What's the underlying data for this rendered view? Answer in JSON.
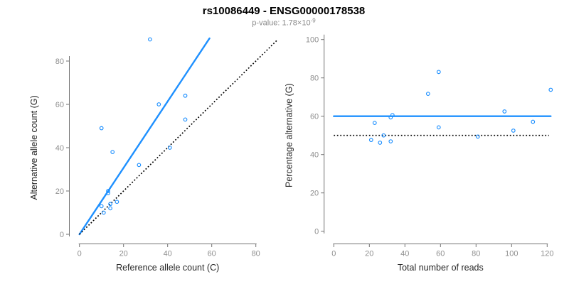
{
  "header": {
    "title": "rs10086449 - ENSG00000178538",
    "pvalue_text": "p-value: 1.78×10",
    "pvalue_exponent": "-9"
  },
  "colors": {
    "accent_blue": "#1E90FF",
    "reference_black": "#000000"
  },
  "chart_data": [
    {
      "type": "scatter",
      "title": "rs10086449 - ENSG00000178538",
      "subtitle": "p-value: 1.78×10^-9",
      "xlabel": "Reference allele count (C)",
      "ylabel": "Alternative allele count (G)",
      "xticks": [
        0,
        20,
        40,
        60,
        80
      ],
      "yticks": [
        0,
        20,
        40,
        60,
        80
      ],
      "xlim": [
        0,
        92
      ],
      "ylim": [
        0,
        92
      ],
      "grid": false,
      "legend": "none",
      "point_style": "open-circle",
      "points": [
        [
          10,
          13
        ],
        [
          11,
          10
        ],
        [
          13,
          20
        ],
        [
          13,
          19
        ],
        [
          14,
          14
        ],
        [
          14,
          12
        ],
        [
          17,
          15
        ],
        [
          10,
          49
        ],
        [
          15,
          38
        ],
        [
          27,
          32
        ],
        [
          32,
          90
        ],
        [
          36,
          60
        ],
        [
          41,
          40
        ],
        [
          48,
          64
        ],
        [
          48,
          53
        ]
      ],
      "lines": [
        {
          "name": "fitted-ratio-line",
          "style": "solid",
          "color": "#1E90FF",
          "from": [
            0,
            0
          ],
          "to": [
            59,
            90.5
          ]
        },
        {
          "name": "identity-line",
          "style": "dotted",
          "color": "#000000",
          "from": [
            0,
            0
          ],
          "to": [
            90,
            90
          ]
        }
      ]
    },
    {
      "type": "scatter",
      "title": "",
      "subtitle": "",
      "xlabel": "Total number of reads",
      "ylabel": "Percentage alternative (G)",
      "xticks": [
        0,
        20,
        40,
        60,
        80,
        100,
        120
      ],
      "yticks": [
        0,
        20,
        40,
        60,
        80,
        100
      ],
      "xlim": [
        0,
        124
      ],
      "ylim": [
        0,
        100
      ],
      "grid": false,
      "legend": "none",
      "point_style": "open-circle",
      "points": [
        [
          23,
          56.5
        ],
        [
          21,
          47.6
        ],
        [
          33,
          60.6
        ],
        [
          32,
          59.4
        ],
        [
          28,
          50
        ],
        [
          26,
          46.2
        ],
        [
          32,
          46.9
        ],
        [
          59,
          83.1
        ],
        [
          53,
          71.7
        ],
        [
          59,
          54.2
        ],
        [
          122,
          73.8
        ],
        [
          96,
          62.5
        ],
        [
          81,
          49.4
        ],
        [
          112,
          57.1
        ],
        [
          101,
          52.5
        ]
      ],
      "lines": [
        {
          "name": "mean-percentage-line",
          "style": "solid",
          "color": "#1E90FF",
          "from": [
            0,
            60
          ],
          "to": [
            122,
            60
          ]
        },
        {
          "name": "fifty-percent-line",
          "style": "dotted",
          "color": "#000000",
          "from": [
            0,
            50
          ],
          "to": [
            121,
            50
          ]
        }
      ]
    }
  ]
}
